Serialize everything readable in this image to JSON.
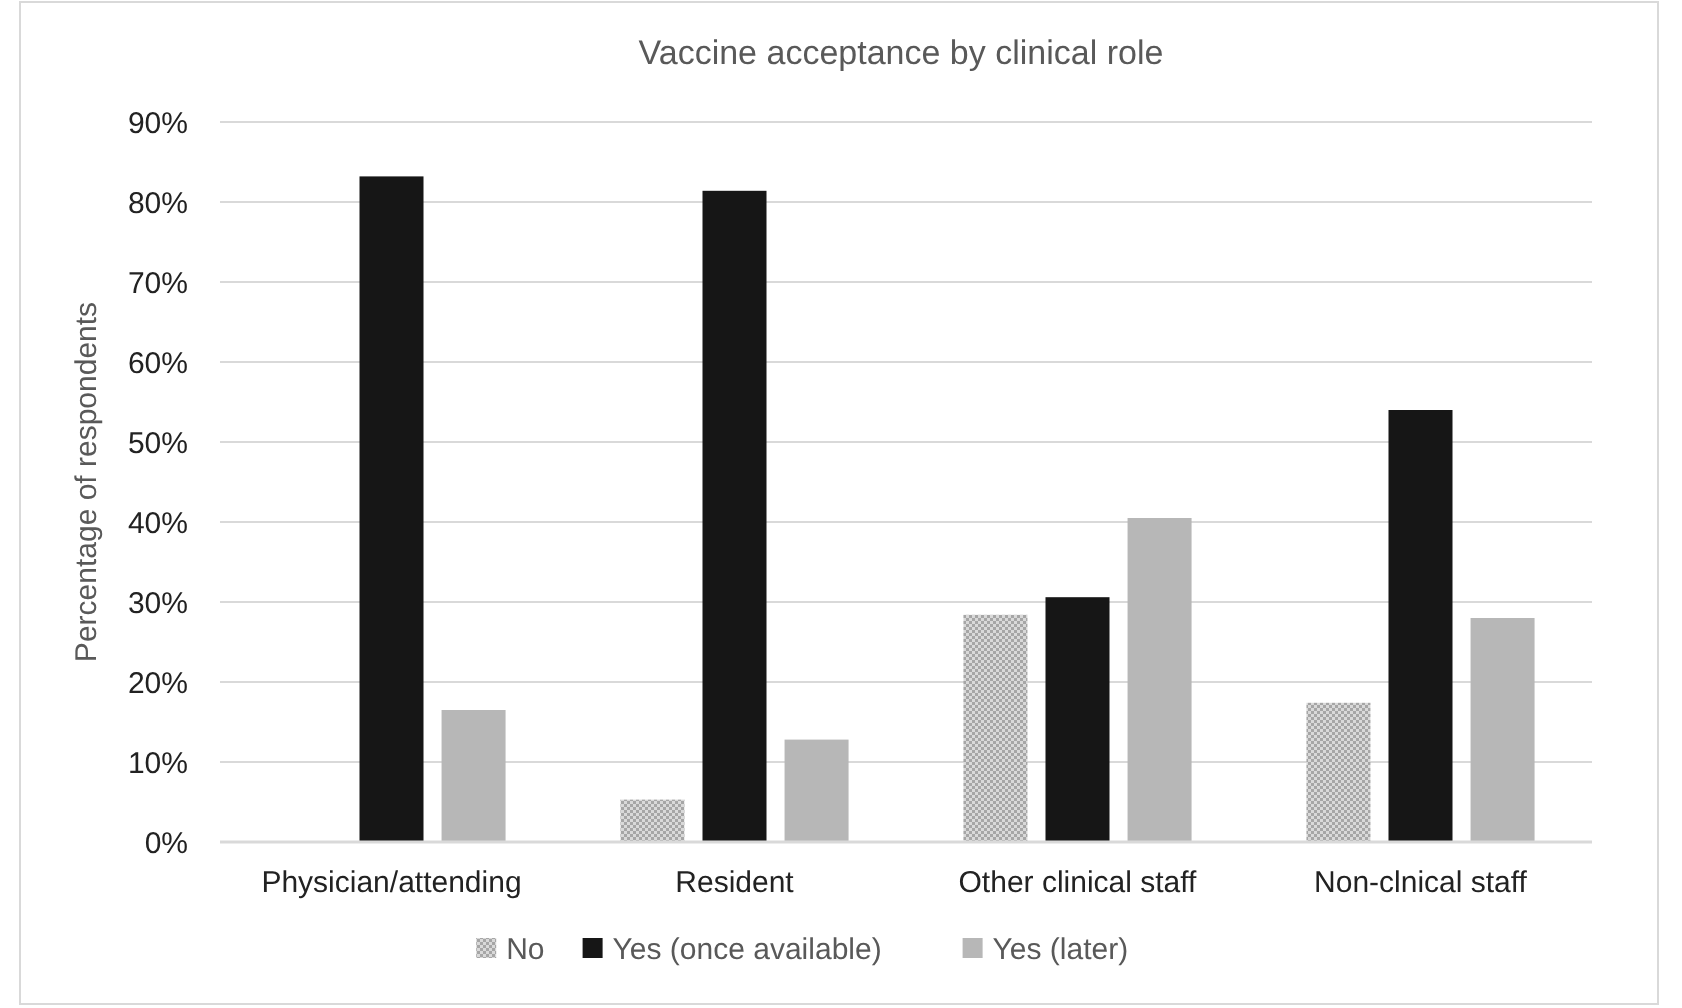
{
  "chart_data": {
    "type": "bar",
    "title": "Vaccine acceptance by clinical role",
    "ylabel": "Percentage of respondents",
    "categories": [
      "Physician/attending",
      "Resident",
      "Other clinical staff",
      "Non-clnical staff"
    ],
    "series": [
      {
        "name": "No",
        "color": "#a6a6a6",
        "values": [
          0,
          5.3,
          28.4,
          17.4
        ]
      },
      {
        "name": "Yes (once available)",
        "color": "#161616",
        "values": [
          83.2,
          81.4,
          30.6,
          54.0
        ]
      },
      {
        "name": "Yes (later)",
        "color": "#b7b7b7",
        "values": [
          16.5,
          12.8,
          40.5,
          28.0
        ]
      }
    ],
    "ylim": [
      0,
      90
    ],
    "yticks": [
      {
        "value": 0,
        "label": "0%"
      },
      {
        "value": 10,
        "label": "10%"
      },
      {
        "value": 20,
        "label": "20%"
      },
      {
        "value": 30,
        "label": "30%"
      },
      {
        "value": 40,
        "label": "40%"
      },
      {
        "value": 50,
        "label": "50%"
      },
      {
        "value": 60,
        "label": "60%"
      },
      {
        "value": 70,
        "label": "70%"
      },
      {
        "value": 80,
        "label": "80%"
      },
      {
        "value": 90,
        "label": "90%"
      }
    ],
    "grid": "y",
    "legend": "bottom"
  }
}
